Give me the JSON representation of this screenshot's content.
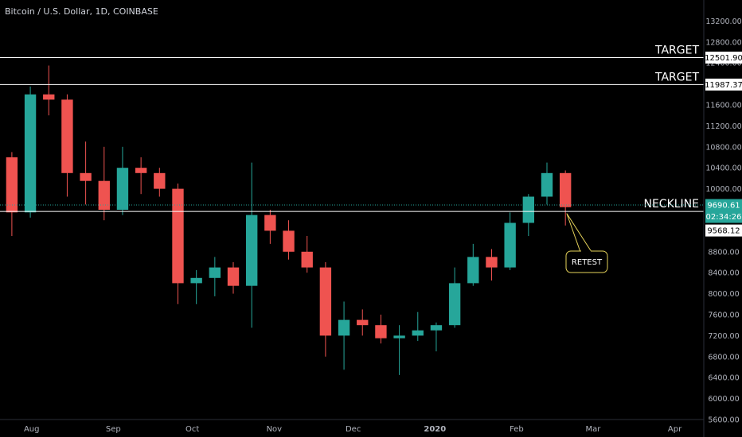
{
  "chart_data": {
    "type": "candlestick",
    "title": "Bitcoin / U.S. Dollar, 1D, COINBASE",
    "ylim": [
      5600,
      13600
    ],
    "y_ticks": [
      5600,
      6000,
      6400,
      6800,
      7200,
      7600,
      8000,
      8400,
      8800,
      9200,
      9600,
      10000,
      10400,
      10800,
      11200,
      11600,
      12000,
      12400,
      12800,
      13200
    ],
    "x_tick_labels": [
      "Aug",
      "Sep",
      "Oct",
      "Nov",
      "Dec",
      "2020",
      "Feb",
      "Mar",
      "Apr"
    ],
    "x_tick_dates": [
      "2019-08-01",
      "2019-09-01",
      "2019-10-01",
      "2019-11-01",
      "2019-12-01",
      "2020-01-01",
      "2020-02-01",
      "2020-03-01",
      "2020-04-01"
    ],
    "x_range": [
      "2019-07-20",
      "2020-04-12"
    ],
    "grid": false,
    "legend": "none",
    "colors": {
      "up": "#26a69a",
      "down": "#ef5350",
      "background": "#000000",
      "text": "#d1d4dc",
      "line": "#ffffff",
      "callout_border": "#e6d35a"
    },
    "ohlc_weekly": [
      {
        "date": "2019-07-21",
        "open": 10600,
        "high": 10700,
        "low": 9100,
        "close": 9550
      },
      {
        "date": "2019-07-28",
        "open": 9550,
        "high": 11950,
        "low": 9450,
        "close": 11800
      },
      {
        "date": "2019-08-04",
        "open": 11800,
        "high": 12350,
        "low": 11400,
        "close": 11700
      },
      {
        "date": "2019-08-11",
        "open": 11700,
        "high": 11800,
        "low": 9850,
        "close": 10300
      },
      {
        "date": "2019-08-18",
        "open": 10300,
        "high": 10900,
        "low": 9700,
        "close": 10150
      },
      {
        "date": "2019-08-25",
        "open": 10150,
        "high": 10800,
        "low": 9400,
        "close": 9600
      },
      {
        "date": "2019-09-01",
        "open": 9600,
        "high": 10800,
        "low": 9500,
        "close": 10400
      },
      {
        "date": "2019-09-08",
        "open": 10400,
        "high": 10600,
        "low": 9900,
        "close": 10300
      },
      {
        "date": "2019-09-15",
        "open": 10300,
        "high": 10400,
        "low": 9850,
        "close": 10000
      },
      {
        "date": "2019-09-22",
        "open": 10000,
        "high": 10100,
        "low": 7800,
        "close": 8200
      },
      {
        "date": "2019-09-29",
        "open": 8200,
        "high": 8450,
        "low": 7800,
        "close": 8300
      },
      {
        "date": "2019-10-06",
        "open": 8300,
        "high": 8700,
        "low": 7950,
        "close": 8500
      },
      {
        "date": "2019-10-13",
        "open": 8500,
        "high": 8600,
        "low": 8000,
        "close": 8150
      },
      {
        "date": "2019-10-20",
        "open": 8150,
        "high": 10500,
        "low": 7350,
        "close": 9500
      },
      {
        "date": "2019-10-27",
        "open": 9500,
        "high": 9600,
        "low": 8950,
        "close": 9200
      },
      {
        "date": "2019-11-03",
        "open": 9200,
        "high": 9400,
        "low": 8650,
        "close": 8800
      },
      {
        "date": "2019-11-10",
        "open": 8800,
        "high": 9100,
        "low": 8400,
        "close": 8500
      },
      {
        "date": "2019-11-17",
        "open": 8500,
        "high": 8600,
        "low": 6800,
        "close": 7200
      },
      {
        "date": "2019-11-24",
        "open": 7200,
        "high": 7850,
        "low": 6550,
        "close": 7500
      },
      {
        "date": "2019-12-01",
        "open": 7500,
        "high": 7700,
        "low": 7200,
        "close": 7400
      },
      {
        "date": "2019-12-08",
        "open": 7400,
        "high": 7600,
        "low": 7050,
        "close": 7150
      },
      {
        "date": "2019-12-15",
        "open": 7150,
        "high": 7400,
        "low": 6450,
        "close": 7200
      },
      {
        "date": "2019-12-22",
        "open": 7200,
        "high": 7650,
        "low": 7100,
        "close": 7300
      },
      {
        "date": "2019-12-29",
        "open": 7300,
        "high": 7450,
        "low": 6900,
        "close": 7400
      },
      {
        "date": "2020-01-05",
        "open": 7400,
        "high": 8500,
        "low": 7350,
        "close": 8200
      },
      {
        "date": "2020-01-12",
        "open": 8200,
        "high": 8950,
        "low": 8150,
        "close": 8700
      },
      {
        "date": "2020-01-19",
        "open": 8700,
        "high": 8850,
        "low": 8250,
        "close": 8500
      },
      {
        "date": "2020-01-26",
        "open": 8500,
        "high": 9550,
        "low": 8450,
        "close": 9350
      },
      {
        "date": "2020-02-02",
        "open": 9350,
        "high": 9900,
        "low": 9100,
        "close": 9850
      },
      {
        "date": "2020-02-09",
        "open": 9850,
        "high": 10500,
        "low": 9700,
        "close": 10300
      },
      {
        "date": "2020-02-16",
        "open": 10300,
        "high": 10350,
        "low": 9300,
        "close": 9650
      }
    ],
    "horizontal_lines": [
      {
        "label": "TARGET",
        "value": 12501.9,
        "value_label": "12501.90"
      },
      {
        "label": "TARGET",
        "value": 11987.37,
        "value_label": "11987.37"
      },
      {
        "label": "NECKLINE",
        "value": 9568.12,
        "value_label": "9568.12"
      }
    ],
    "last_price": {
      "value": 9690.61,
      "value_label": "9690.61",
      "countdown": "02:34:26"
    },
    "annotation": {
      "text": "RETEST",
      "target_date": "2020-02-20",
      "target_value": 9560
    }
  }
}
